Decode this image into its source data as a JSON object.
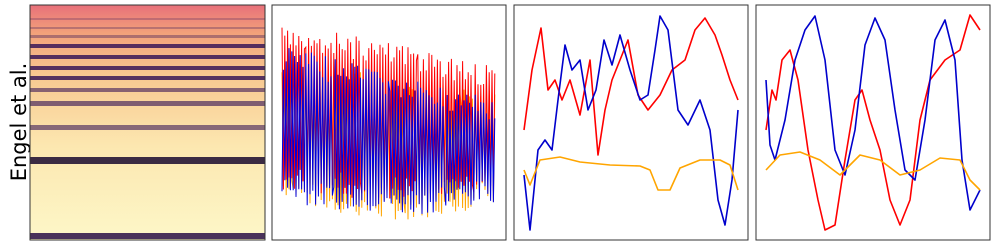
{
  "row_label": "Engel et al."
}
